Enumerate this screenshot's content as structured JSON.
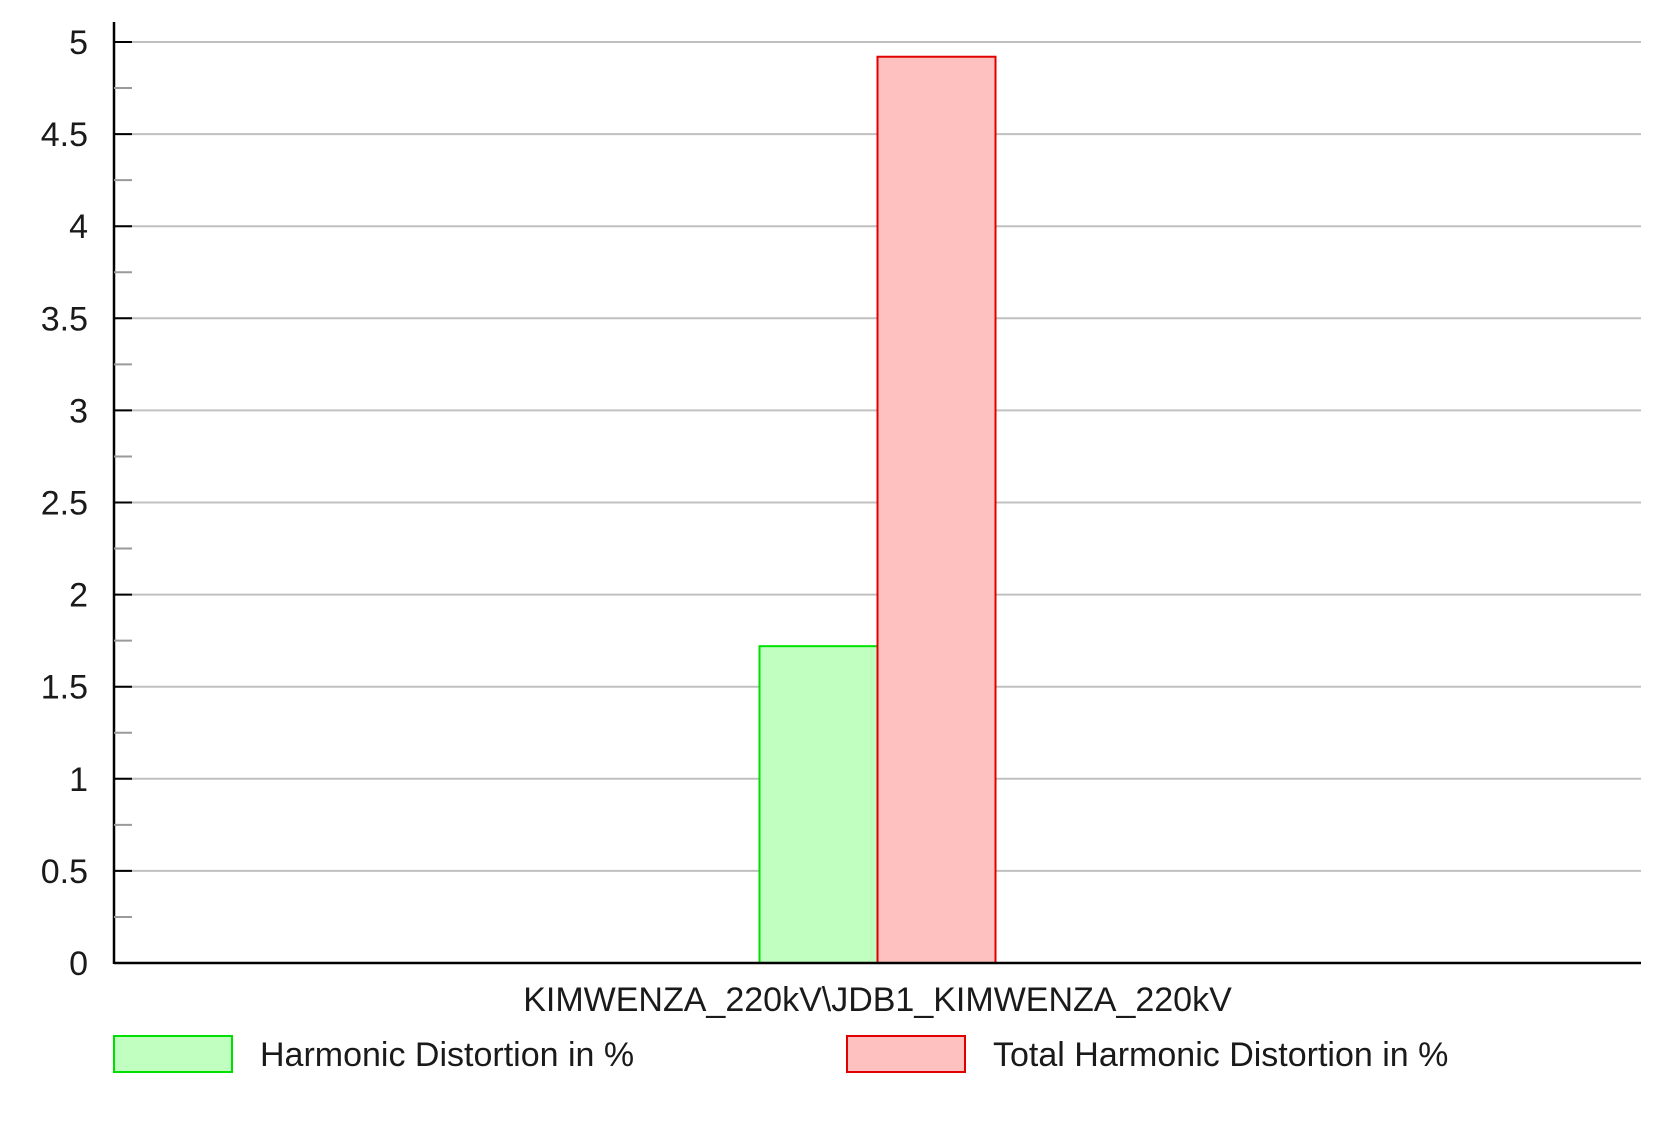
{
  "chart_data": {
    "type": "bar",
    "title": "",
    "xlabel": "",
    "ylabel": "",
    "ylim": [
      0,
      5
    ],
    "y_major_ticks": [
      0,
      0.5,
      1,
      1.5,
      2,
      2.5,
      3,
      3.5,
      4,
      4.5,
      5
    ],
    "y_tick_labels": [
      "0",
      "0.5",
      "1",
      "1.5",
      "2",
      "2.5",
      "3",
      "3.5",
      "4",
      "4.5",
      "5"
    ],
    "y_minor_ticks": [
      0.25,
      0.75,
      1.25,
      1.75,
      2.25,
      2.75,
      3.25,
      3.75,
      4.25,
      4.75
    ],
    "grid": true,
    "legend_position": "bottom",
    "categories": [
      "KIMWENZA_220kV\\JDB1_KIMWENZA_220kV"
    ],
    "series": [
      {
        "name": "Harmonic Distortion in %",
        "values": [
          1.72
        ],
        "fill": "#c0ffc0",
        "stroke": "#00e000"
      },
      {
        "name": "Total Harmonic Distortion in %",
        "values": [
          4.92
        ],
        "fill": "#ffc0c0",
        "stroke": "#e00000"
      }
    ],
    "colors": {
      "grid": "#c0c0c0",
      "axis": "#000000"
    }
  }
}
